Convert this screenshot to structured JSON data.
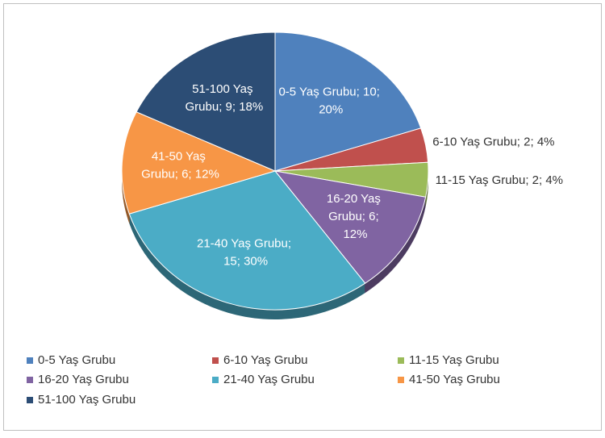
{
  "chart_data": {
    "type": "pie",
    "categories": [
      "0-5 Yaş Grubu",
      "6-10 Yaş Grubu",
      "11-15 Yaş Grubu",
      "16-20 Yaş Grubu",
      "21-40 Yaş Grubu",
      "41-50 Yaş Grubu",
      "51-100 Yaş Grubu"
    ],
    "values": [
      10,
      2,
      2,
      6,
      15,
      6,
      9
    ],
    "value_labels": [
      "0-5 Yaş Grubu; 10; 20%",
      "6-10 Yaş Grubu; 2; 4%",
      "11-15 Yaş Grubu; 2; 4%",
      "16-20 Yaş Grubu; 6; 12%",
      "21-40 Yaş Grubu; 15; 30%",
      "41-50 Yaş Grubu; 6; 12%",
      "51-100 Yaş Grubu; 9; 18%"
    ],
    "colors": [
      "#4f81bd",
      "#c0504d",
      "#9bbb59",
      "#8064a2",
      "#4bacc6",
      "#f79646",
      "#2c4d75"
    ],
    "legend": "bottom"
  }
}
